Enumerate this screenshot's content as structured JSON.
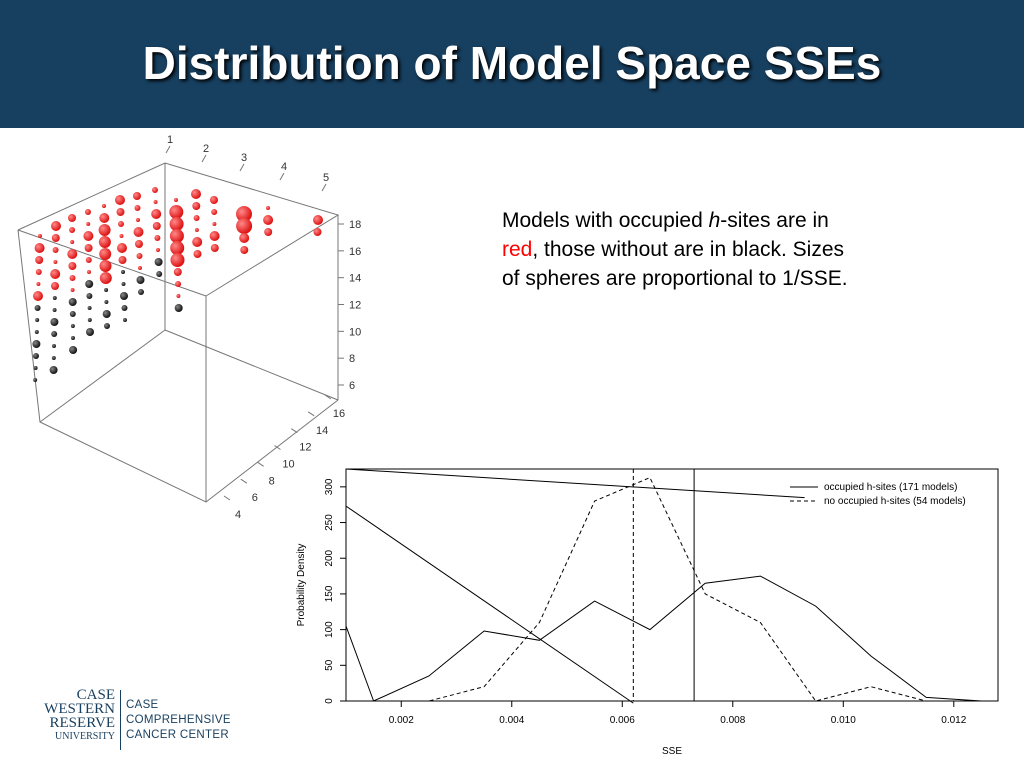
{
  "slide": {
    "title": "Distribution of Model Space SSEs",
    "desc_p1": "Models with occupied ",
    "desc_italic": "h",
    "desc_p2": "-sites are in ",
    "desc_red": "red",
    "desc_p3": ", those without are in black. Sizes of spheres are proportional to 1/SSE.",
    "accent_color": "#173f5f",
    "red_color": "#ff0000"
  },
  "logo": {
    "cwru": [
      "CASE",
      "WESTERN",
      "RESERVE",
      "UNIVERSITY"
    ],
    "center": [
      "CASE",
      "COMPREHENSIVE",
      "CANCER CENTER"
    ]
  },
  "chart_data": [
    {
      "type": "scatter",
      "projection": "3d",
      "title": "",
      "axes": {
        "x_ticks": [
          "1",
          "2",
          "3",
          "4",
          "5"
        ],
        "y_ticks": [
          "4",
          "6",
          "8",
          "10",
          "12",
          "14",
          "16"
        ],
        "z_ticks": [
          "6",
          "8",
          "10",
          "12",
          "14",
          "16",
          "18"
        ]
      },
      "marker_colors": {
        "occupied": "#dd1111",
        "unoccupied": "#111111"
      },
      "encoding": {
        "color": "occupied h-sites (red) vs none (black)",
        "size": "1/SSE"
      }
    },
    {
      "type": "line",
      "title": "",
      "xlabel": "SSE",
      "ylabel": "Probability Density",
      "xlim": [
        0.001,
        0.0128
      ],
      "ylim": [
        0,
        325
      ],
      "x_ticks": [
        "0.002",
        "0.004",
        "0.006",
        "0.008",
        "0.010",
        "0.012"
      ],
      "x_tick_values": [
        0.002,
        0.004,
        0.006,
        0.008,
        0.01,
        0.012
      ],
      "y_ticks": [
        "0",
        "50",
        "100",
        "150",
        "200",
        "250",
        "300"
      ],
      "y_tick_values": [
        0,
        50,
        100,
        150,
        200,
        250,
        300
      ],
      "legend_position": "top-right",
      "series": [
        {
          "name": "occupied h-sites (171 models)",
          "style": "solid",
          "points": [
            [
              0.001,
              105
            ],
            [
              0.0015,
              0
            ],
            [
              0.0025,
              35
            ],
            [
              0.0035,
              98
            ],
            [
              0.0045,
              85
            ],
            [
              0.0055,
              140
            ],
            [
              0.0065,
              100
            ],
            [
              0.0075,
              165
            ],
            [
              0.0085,
              175
            ],
            [
              0.0095,
              133
            ],
            [
              0.0105,
              63
            ],
            [
              0.0115,
              5
            ],
            [
              0.0125,
              0
            ]
          ]
        },
        {
          "name": "no occupied h-sites (54 models)",
          "style": "dashed",
          "points": [
            [
              0.0015,
              0
            ],
            [
              0.0025,
              0
            ],
            [
              0.0035,
              20
            ],
            [
              0.0045,
              110
            ],
            [
              0.0055,
              280
            ],
            [
              0.0065,
              313
            ],
            [
              0.0075,
              150
            ],
            [
              0.0085,
              110
            ],
            [
              0.0095,
              0
            ],
            [
              0.0105,
              20
            ],
            [
              0.0115,
              0
            ],
            [
              0.0125,
              0
            ]
          ]
        }
      ],
      "extra_lines": [
        {
          "style": "solid",
          "points": [
            [
              0.001,
              325
            ],
            [
              0.0093,
              285
            ]
          ]
        },
        {
          "style": "solid",
          "points": [
            [
              0.001,
              273
            ],
            [
              0.0062,
              -3
            ]
          ]
        }
      ],
      "vlines": [
        {
          "x": 0.0062,
          "style": "dashed"
        },
        {
          "x": 0.0073,
          "style": "solid"
        }
      ]
    }
  ]
}
